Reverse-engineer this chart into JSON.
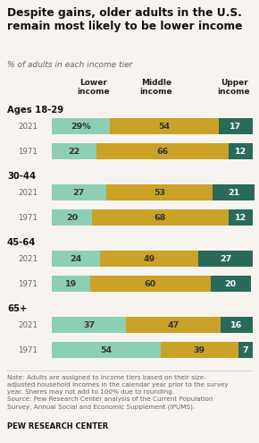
{
  "title": "Despite gains, older adults in the U.S.\nremain most likely to be lower income",
  "subtitle": "% of adults in each income tier",
  "colors": {
    "lower": "#8DCFB5",
    "middle": "#C9A227",
    "upper": "#2A6A5A"
  },
  "col_headers": [
    "Lower\nincome",
    "Middle\nincome",
    "Upper\nincome"
  ],
  "groups": [
    {
      "label": "Ages 18-29",
      "rows": [
        {
          "year": "2021",
          "lower": 29,
          "middle": 54,
          "upper": 17,
          "pct_sign": true
        },
        {
          "year": "1971",
          "lower": 22,
          "middle": 66,
          "upper": 12,
          "pct_sign": false
        }
      ]
    },
    {
      "label": "30-44",
      "rows": [
        {
          "year": "2021",
          "lower": 27,
          "middle": 53,
          "upper": 21,
          "pct_sign": false
        },
        {
          "year": "1971",
          "lower": 20,
          "middle": 68,
          "upper": 12,
          "pct_sign": false
        }
      ]
    },
    {
      "label": "45-64",
      "rows": [
        {
          "year": "2021",
          "lower": 24,
          "middle": 49,
          "upper": 27,
          "pct_sign": false
        },
        {
          "year": "1971",
          "lower": 19,
          "middle": 60,
          "upper": 20,
          "pct_sign": false
        }
      ]
    },
    {
      "label": "65+",
      "rows": [
        {
          "year": "2021",
          "lower": 37,
          "middle": 47,
          "upper": 16,
          "pct_sign": false
        },
        {
          "year": "1971",
          "lower": 54,
          "middle": 39,
          "upper": 7,
          "pct_sign": false
        }
      ]
    }
  ],
  "note_text": "Note: Adults are assigned to income tiers based on their size-\nadjusted household incomes in the calendar year prior to the survey\nyear. Shares may not add to 100% due to rounding.\nSource: Pew Research Center analysis of the Current Population\nSurvey, Annual Social and Economic Supplement (IPUMS).",
  "source_label": "PEW RESEARCH CENTER",
  "bg_color": "#F7F4EF"
}
